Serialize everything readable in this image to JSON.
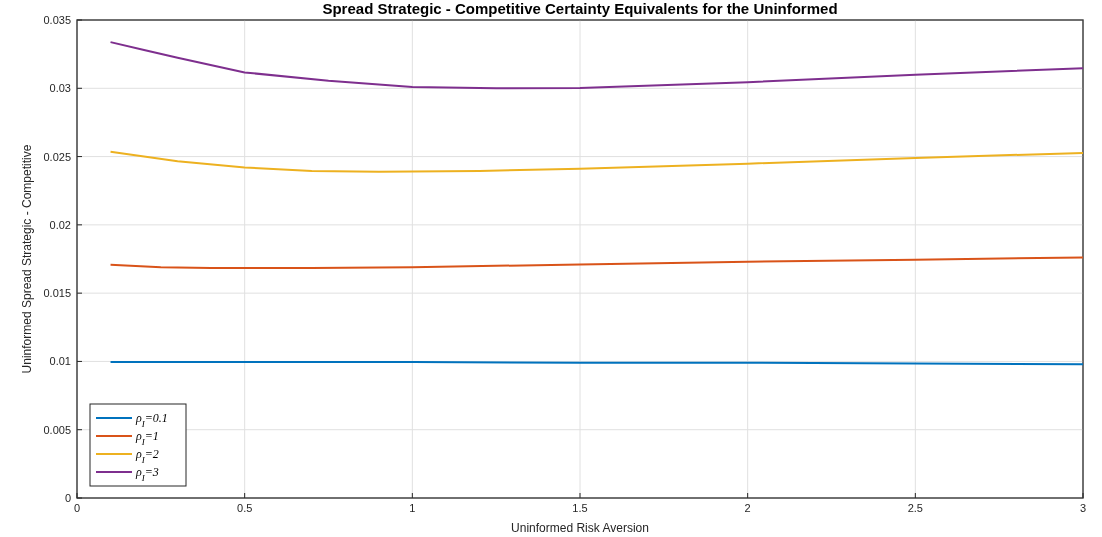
{
  "chart_data": {
    "type": "line",
    "title": "Spread Strategic - Competitive Certainty Equivalents for the Uninformed",
    "xlabel": "Uninformed Risk Aversion",
    "ylabel": "Uninformed Spread Strategic - Competitive",
    "xlim": [
      0,
      3
    ],
    "xticks": [
      0,
      0.5,
      1,
      1.5,
      2,
      2.5,
      3
    ],
    "ylim": [
      0,
      0.035
    ],
    "yticks": [
      0,
      0.005,
      0.01,
      0.015,
      0.02,
      0.025,
      0.03,
      0.035
    ],
    "grid": true,
    "legend": "bottom left",
    "marker": "none",
    "line_style": "solid",
    "series": [
      {
        "name": "ρ$_{I}$=0.1",
        "color": "#0072bd",
        "x": [
          0.1,
          0.5,
          1,
          1.5,
          2,
          2.5,
          3
        ],
        "values": [
          0.00995,
          0.00995,
          0.00995,
          0.0099,
          0.0099,
          0.00985,
          0.0098
        ]
      },
      {
        "name": "ρ$_{I}$=1",
        "color": "#d95319",
        "x": [
          0.1,
          0.25,
          0.4,
          0.7,
          1,
          1.5,
          2,
          2.5,
          3
        ],
        "values": [
          0.01707,
          0.0169,
          0.01685,
          0.01685,
          0.0169,
          0.0171,
          0.0173,
          0.01745,
          0.01761
        ]
      },
      {
        "name": "ρ$_{I}$=2",
        "color": "#edb120",
        "x": [
          0.1,
          0.3,
          0.5,
          0.7,
          0.9,
          1.2,
          1.5,
          2,
          2.5,
          3
        ],
        "values": [
          0.02535,
          0.02466,
          0.0242,
          0.02395,
          0.02389,
          0.02395,
          0.0241,
          0.02448,
          0.0249,
          0.02527
        ]
      },
      {
        "name": "ρ$_{I}$=3",
        "color": "#7e2f8e",
        "x": [
          0.1,
          0.2,
          0.3,
          0.5,
          0.75,
          1,
          1.25,
          1.5,
          2,
          2.5,
          3
        ],
        "values": [
          0.03338,
          0.0328,
          0.03224,
          0.03116,
          0.03055,
          0.0301,
          0.03,
          0.03003,
          0.03045,
          0.031,
          0.03147
        ]
      }
    ]
  }
}
